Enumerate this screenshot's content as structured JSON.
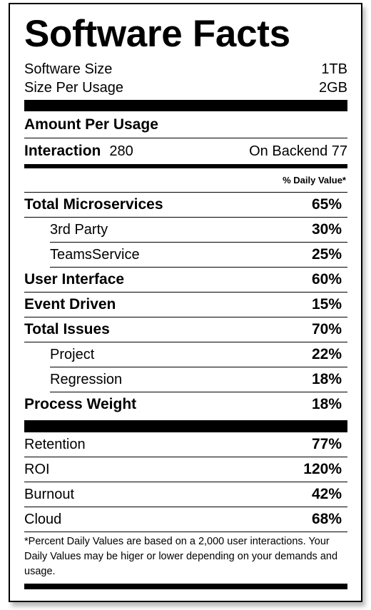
{
  "title": "Software Facts",
  "sizes": [
    {
      "label": "Software Size",
      "value": "1TB"
    },
    {
      "label": "Size Per Usage",
      "value": "2GB"
    }
  ],
  "amount_heading": "Amount Per Usage",
  "interaction": {
    "label": "Interaction",
    "value": "280",
    "right": "On Backend 77"
  },
  "daily_value_heading": "% Daily Value*",
  "rows": [
    {
      "label": "Total Microservices",
      "value": "65%",
      "level": "main"
    },
    {
      "label": "3rd Party",
      "value": "30%",
      "level": "sub"
    },
    {
      "label": "TeamsService",
      "value": "25%",
      "level": "sub"
    },
    {
      "label": "User Interface",
      "value": "60%",
      "level": "main"
    },
    {
      "label": "Event Driven",
      "value": "15%",
      "level": "main"
    },
    {
      "label": "Total Issues",
      "value": "70%",
      "level": "main"
    },
    {
      "label": "Project",
      "value": "22%",
      "level": "sub"
    },
    {
      "label": "Regression",
      "value": "18%",
      "level": "sub"
    },
    {
      "label": "Process Weight",
      "value": "18%",
      "level": "main"
    }
  ],
  "extra_rows": [
    {
      "label": "Retention",
      "value": "77%",
      "level": "plain"
    },
    {
      "label": "ROI",
      "value": "120%",
      "level": "plain"
    },
    {
      "label": "Burnout",
      "value": "42%",
      "level": "plain"
    },
    {
      "label": "Cloud",
      "value": "68%",
      "level": "plain"
    }
  ],
  "footnote": "*Percent Daily Values are based on a 2,000 user interactions. Your Daily Values may be higer or lower depending on your demands and usage."
}
